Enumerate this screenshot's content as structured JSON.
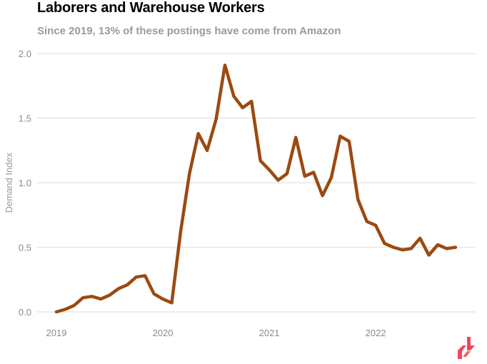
{
  "chart_data": {
    "type": "line",
    "title": "Laborers and Warehouse Workers",
    "subtitle": "Since 2019, 13% of these postings have come from Amazon",
    "xlabel": "",
    "ylabel": "Demand Index",
    "ylim": [
      0,
      2.0
    ],
    "yticks": [
      0.0,
      0.5,
      1.0,
      1.5,
      2.0
    ],
    "ytick_labels": [
      "0.0",
      "0.5",
      "1.0",
      "1.5",
      "2.0"
    ],
    "xlim_months": [
      0,
      47
    ],
    "xticks_month_index": [
      0,
      12,
      24,
      36
    ],
    "xtick_labels": [
      "2019",
      "2020",
      "2021",
      "2022"
    ],
    "grid": true,
    "legend": "none",
    "series": [
      {
        "name": "Demand Index",
        "color": "#9b4a12",
        "x": [
          "2019-01",
          "2019-02",
          "2019-03",
          "2019-04",
          "2019-05",
          "2019-06",
          "2019-07",
          "2019-08",
          "2019-09",
          "2019-10",
          "2019-11",
          "2019-12",
          "2020-01",
          "2020-02",
          "2020-03",
          "2020-04",
          "2020-05",
          "2020-06",
          "2020-07",
          "2020-08",
          "2020-09",
          "2020-10",
          "2020-11",
          "2020-12",
          "2021-01",
          "2021-02",
          "2021-03",
          "2021-04",
          "2021-05",
          "2021-06",
          "2021-07",
          "2021-08",
          "2021-09",
          "2021-10",
          "2021-11",
          "2021-12",
          "2022-01",
          "2022-02",
          "2022-03",
          "2022-04",
          "2022-05",
          "2022-06",
          "2022-07",
          "2022-08",
          "2022-09",
          "2022-10"
        ],
        "values": [
          0.0,
          0.02,
          0.05,
          0.11,
          0.12,
          0.1,
          0.13,
          0.18,
          0.21,
          0.27,
          0.28,
          0.14,
          0.1,
          0.07,
          0.62,
          1.07,
          1.38,
          1.25,
          1.49,
          1.91,
          1.67,
          1.58,
          1.63,
          1.17,
          1.1,
          1.02,
          1.07,
          1.35,
          1.05,
          1.08,
          0.9,
          1.04,
          1.36,
          1.32,
          0.87,
          0.7,
          0.67,
          0.53,
          0.5,
          0.48,
          0.49,
          0.57,
          0.44,
          0.52,
          0.49,
          0.5
        ]
      }
    ]
  },
  "colors": {
    "grid": "#e6e6e6",
    "tick_text": "#8a8a8a",
    "logo": "#f0475b"
  },
  "logo": {
    "icon": "brand-logo-icon"
  }
}
